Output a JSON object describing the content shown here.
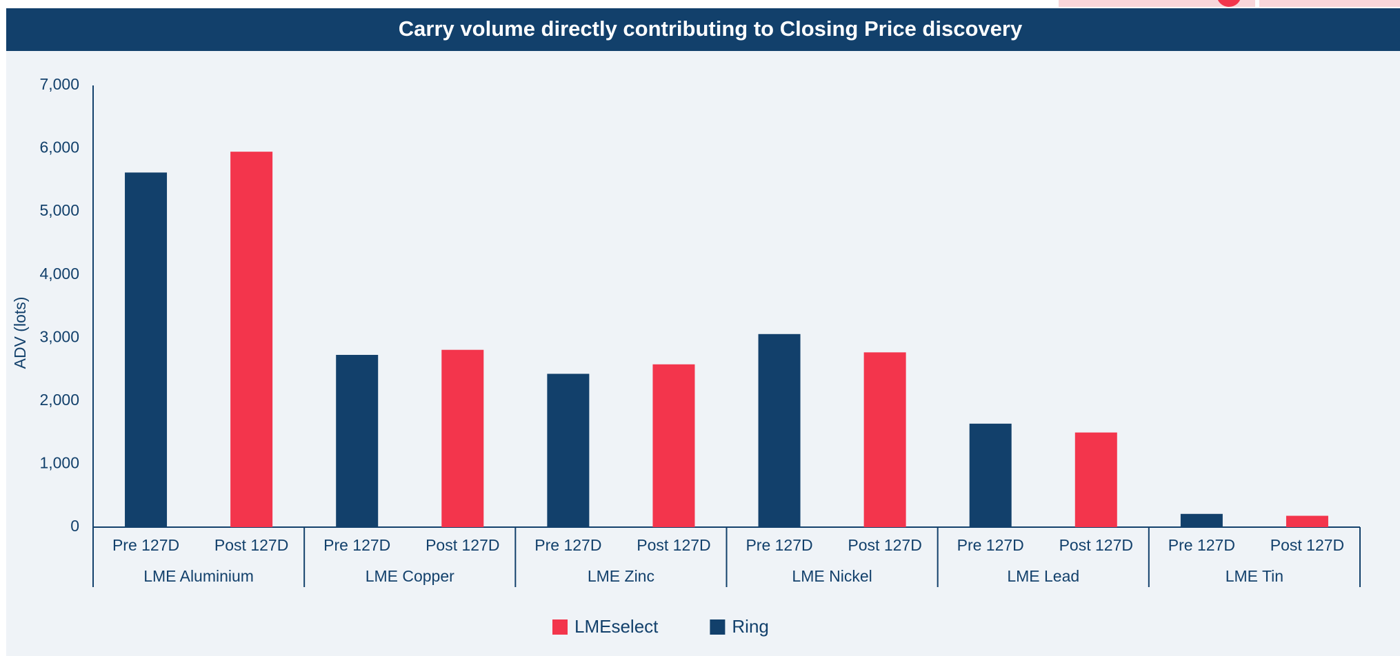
{
  "chart_data": {
    "type": "grouped_bar",
    "title": "Carry volume directly contributing to Closing Price discovery",
    "y_label": "ADV (lots)",
    "categories": [
      "LME Aluminium",
      "LME Copper",
      "LME Zinc",
      "LME Nickel",
      "LME Lead",
      "LME Tin"
    ],
    "subcategories": [
      "Pre 127D",
      "Post 127D"
    ],
    "series": [
      {
        "name": "Ring",
        "color": "#12406b",
        "values": [
          5620,
          2730,
          2430,
          3060,
          1640,
          210
        ]
      },
      {
        "name": "LMEselect",
        "color": "#f3354c",
        "values": [
          5950,
          2810,
          2580,
          2770,
          1500,
          180
        ]
      }
    ],
    "ylim": [
      0,
      7000
    ],
    "yticks": [
      {
        "value": 0,
        "label": "0"
      },
      {
        "value": 1000,
        "label": "1,000"
      },
      {
        "value": 2000,
        "label": "2,000"
      },
      {
        "value": 3000,
        "label": "3,000"
      },
      {
        "value": 4000,
        "label": "4,000"
      },
      {
        "value": 5000,
        "label": "5,000"
      },
      {
        "value": 6000,
        "label": "6,000"
      },
      {
        "value": 7000,
        "label": "7,000"
      }
    ],
    "grid": false,
    "legend": "bottom"
  }
}
